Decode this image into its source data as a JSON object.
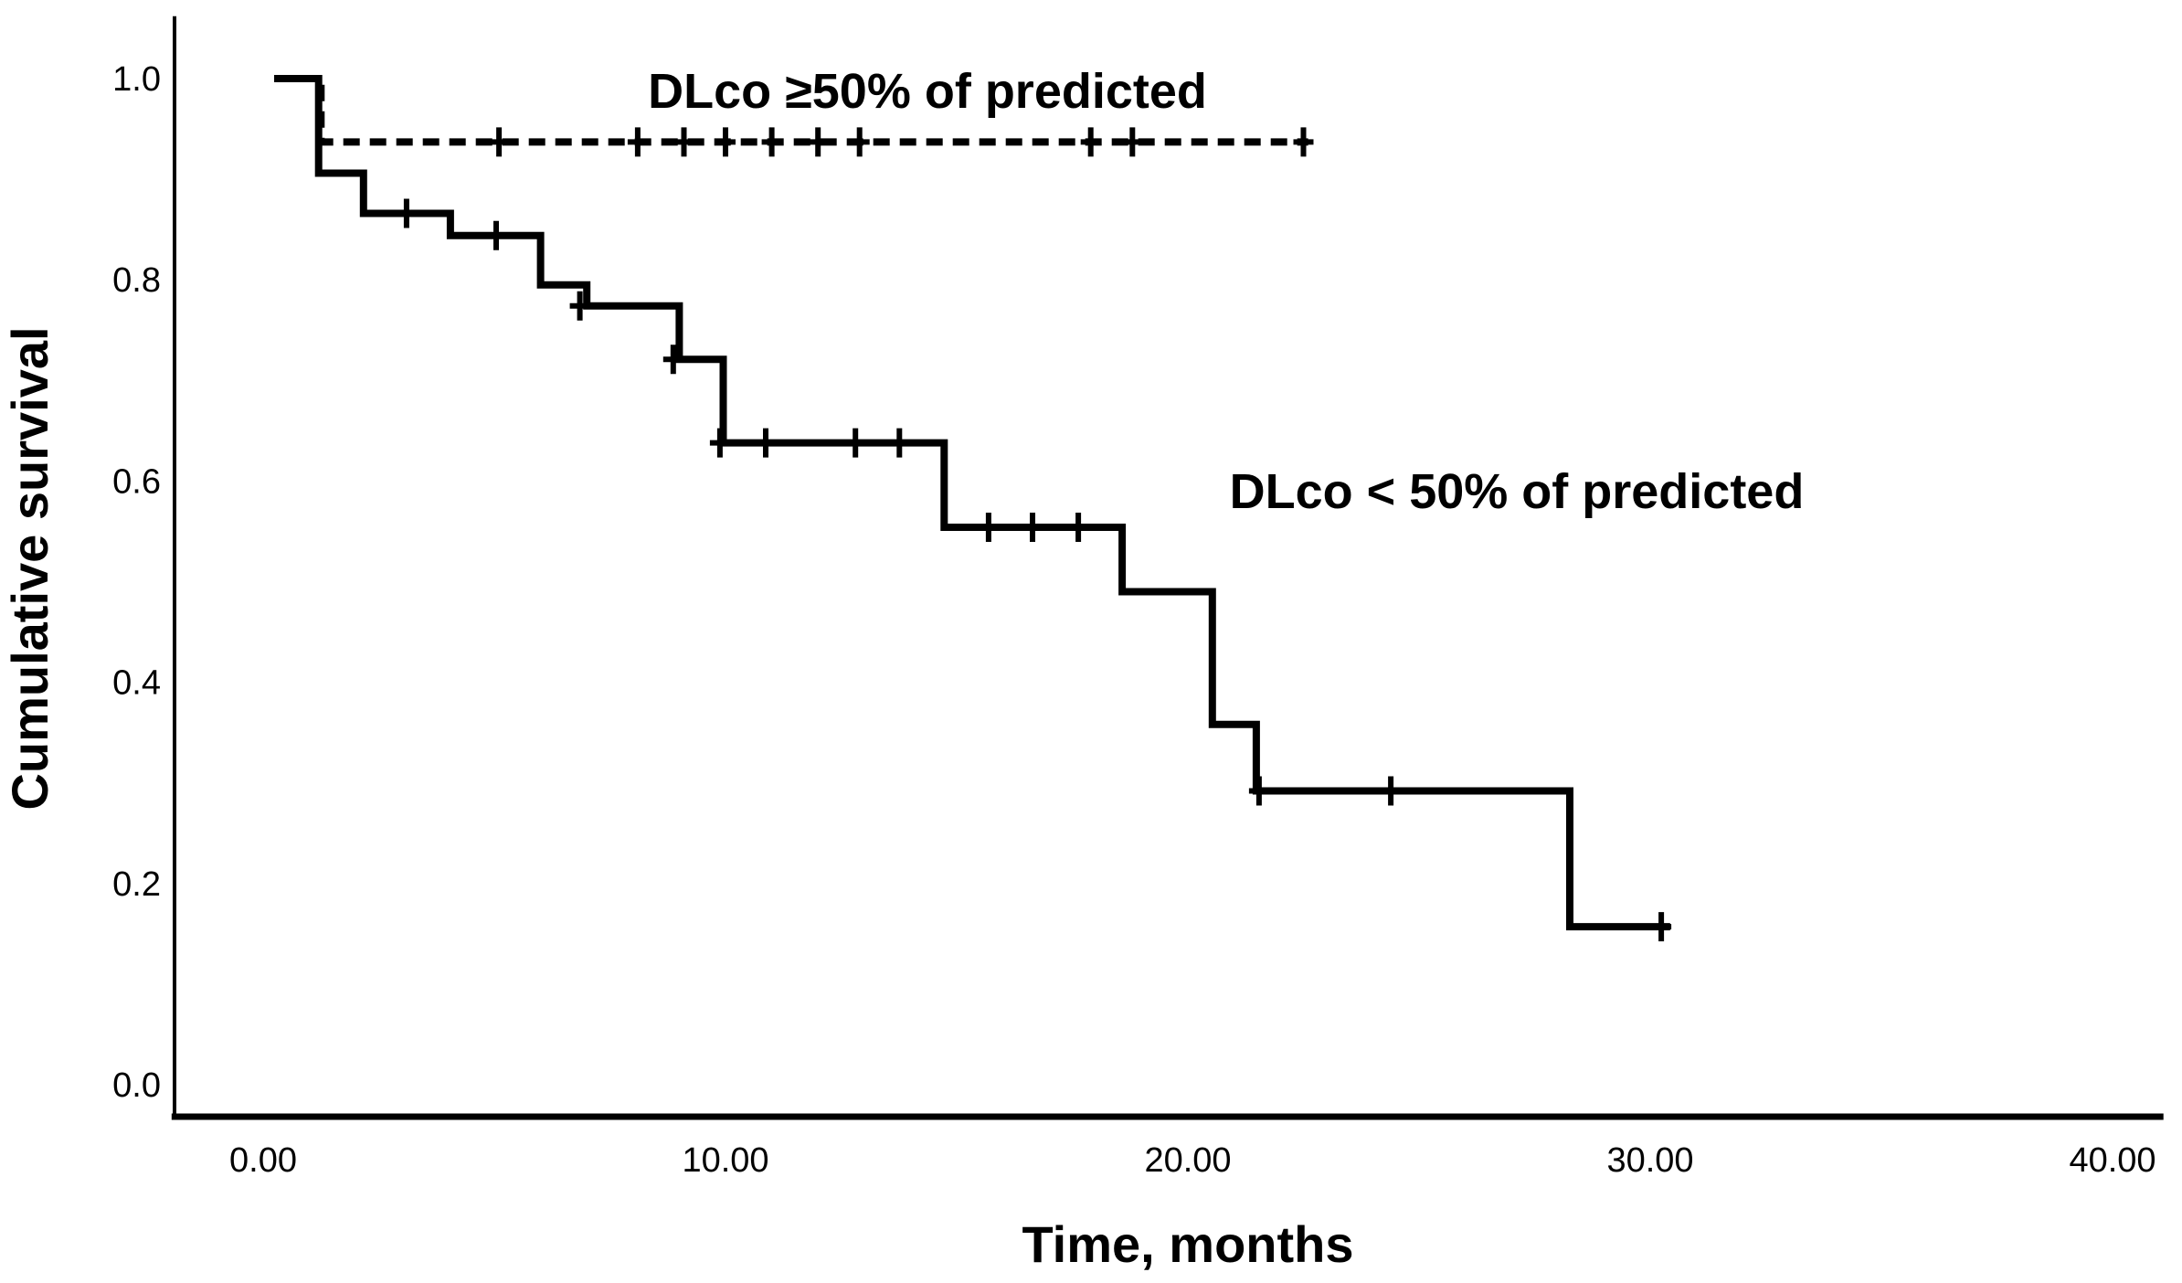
{
  "page": {
    "background_color": "#ffffff",
    "foreground_color": "#000000"
  },
  "chart_data": {
    "type": "line",
    "subtype": "kaplan-meier-step",
    "title": "",
    "xlabel": "Time, months",
    "ylabel": "Cumulative survival",
    "grid": false,
    "legend_position": "inline-annotations",
    "line_color": "#000000",
    "xlim": [
      -1.98,
      41.1
    ],
    "ylim": [
      -0.035,
      1.062
    ],
    "x_ticks": [
      {
        "value": 0,
        "label": "0.00"
      },
      {
        "value": 10,
        "label": "10.00"
      },
      {
        "value": 20,
        "label": "20.00"
      },
      {
        "value": 30,
        "label": "30.00"
      },
      {
        "value": 40,
        "label": "40.00"
      }
    ],
    "y_ticks": [
      {
        "value": 0.0,
        "label": "0.0"
      },
      {
        "value": 0.2,
        "label": "0.2"
      },
      {
        "value": 0.4,
        "label": "0.4"
      },
      {
        "value": 0.6,
        "label": "0.6"
      },
      {
        "value": 0.8,
        "label": "0.8"
      },
      {
        "value": 1.0,
        "label": "1.0"
      }
    ],
    "series": [
      {
        "key": "dlco-ge50",
        "name": "DLco ≥50% of predicted",
        "style": "dashed",
        "label": {
          "text": "DLco ≥50% of predicted",
          "t": 14.35,
          "s": 0.985
        },
        "points": [
          [
            0.24,
            1.0
          ],
          [
            1.25,
            1.0
          ],
          [
            1.25,
            0.937
          ],
          [
            22.6,
            0.937
          ]
        ],
        "censors": [
          [
            5.1,
            0.937
          ],
          [
            8.1,
            0.937
          ],
          [
            9.1,
            0.937
          ],
          [
            10.0,
            0.937
          ],
          [
            11.0,
            0.937
          ],
          [
            12.0,
            0.937
          ],
          [
            12.9,
            0.937
          ],
          [
            17.9,
            0.937
          ],
          [
            18.8,
            0.937
          ],
          [
            22.5,
            0.937
          ]
        ]
      },
      {
        "key": "dlco-lt50",
        "name": "DLco < 50% of predicted",
        "style": "solid",
        "label": {
          "text": "DLco < 50% of predicted",
          "t": 27.1,
          "s": 0.578
        },
        "points": [
          [
            0.24,
            1.0
          ],
          [
            1.2,
            1.0
          ],
          [
            1.2,
            0.906
          ],
          [
            2.17,
            0.906
          ],
          [
            2.17,
            0.866
          ],
          [
            4.05,
            0.866
          ],
          [
            4.05,
            0.844
          ],
          [
            6.0,
            0.844
          ],
          [
            6.0,
            0.795
          ],
          [
            7.0,
            0.795
          ],
          [
            7.0,
            0.774
          ],
          [
            9.0,
            0.774
          ],
          [
            9.0,
            0.721
          ],
          [
            9.95,
            0.721
          ],
          [
            9.95,
            0.638
          ],
          [
            14.73,
            0.638
          ],
          [
            14.73,
            0.554
          ],
          [
            18.58,
            0.554
          ],
          [
            18.58,
            0.49
          ],
          [
            20.53,
            0.49
          ],
          [
            20.53,
            0.358
          ],
          [
            21.48,
            0.358
          ],
          [
            21.48,
            0.292
          ],
          [
            28.26,
            0.292
          ],
          [
            28.26,
            0.157
          ],
          [
            30.43,
            0.157
          ]
        ],
        "censors": [
          [
            3.1,
            0.866
          ],
          [
            5.04,
            0.844
          ],
          [
            6.85,
            0.774
          ],
          [
            8.87,
            0.721
          ],
          [
            9.88,
            0.638
          ],
          [
            10.87,
            0.638
          ],
          [
            12.81,
            0.638
          ],
          [
            13.76,
            0.638
          ],
          [
            15.69,
            0.554
          ],
          [
            16.64,
            0.554
          ],
          [
            17.63,
            0.554
          ],
          [
            21.54,
            0.292
          ],
          [
            24.39,
            0.292
          ],
          [
            30.24,
            0.157
          ]
        ]
      }
    ]
  }
}
